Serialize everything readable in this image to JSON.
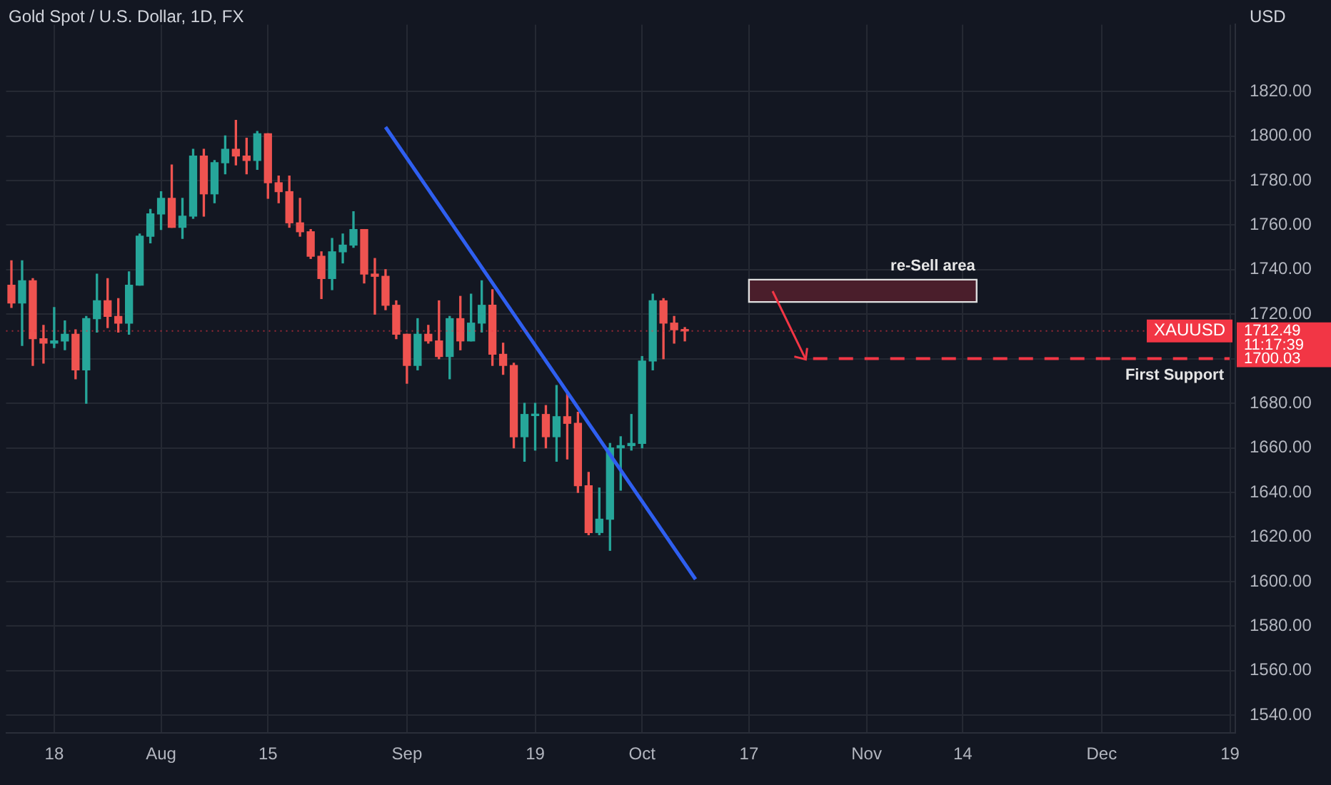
{
  "chart_data": {
    "type": "candlestick",
    "title": "Gold Spot / U.S. Dollar, 1D, FX",
    "ylabel": "USD",
    "categories": [
      null,
      null,
      null,
      null,
      "18",
      null,
      null,
      null,
      null,
      null,
      null,
      null,
      null,
      null,
      "Aug",
      null,
      null,
      null,
      null,
      null,
      null,
      null,
      null,
      null,
      "15",
      null,
      null,
      null,
      null,
      null,
      null,
      null,
      null,
      null,
      null,
      null,
      null,
      "Sep",
      null,
      null,
      null,
      null,
      null,
      null,
      null,
      null,
      null,
      null,
      null,
      "19",
      null,
      null,
      null,
      null,
      null,
      null,
      null,
      null,
      null,
      "Oct",
      null,
      null,
      null,
      null,
      null,
      null,
      null,
      null,
      null,
      "17",
      null,
      null,
      null,
      null,
      null,
      null,
      null,
      null,
      null,
      null,
      "Nov",
      null,
      null,
      null,
      null,
      null,
      null,
      null,
      null,
      "14",
      null,
      null,
      null,
      null,
      null,
      null,
      null,
      null,
      null,
      null,
      null,
      null,
      "Dec",
      null,
      null,
      null,
      null,
      null,
      null,
      null,
      null,
      null,
      null,
      null,
      "19"
    ],
    "ohlc": [
      [
        1733,
        1744,
        1723,
        1725
      ],
      [
        1725,
        1744,
        1706,
        1735
      ],
      [
        1735,
        1736,
        1697,
        1709
      ],
      [
        1709,
        1715,
        1698,
        1707
      ],
      [
        1707,
        1723,
        1705,
        1708
      ],
      [
        1708,
        1717,
        1704,
        1711
      ],
      [
        1711,
        1713,
        1691,
        1695
      ],
      [
        1695,
        1719,
        1680,
        1718
      ],
      [
        1718,
        1738,
        1712,
        1726
      ],
      [
        1726,
        1736,
        1714,
        1719
      ],
      [
        1719,
        1727,
        1712,
        1716
      ],
      [
        1716,
        1739,
        1711,
        1733
      ],
      [
        1733,
        1756,
        1733,
        1755
      ],
      [
        1755,
        1767,
        1752,
        1765
      ],
      [
        1765,
        1775,
        1758,
        1772
      ],
      [
        1772,
        1787,
        1759,
        1759
      ],
      [
        1759,
        1772,
        1754,
        1764
      ],
      [
        1764,
        1794,
        1763,
        1791
      ],
      [
        1791,
        1794,
        1764,
        1774
      ],
      [
        1774,
        1789,
        1770,
        1788
      ],
      [
        1788,
        1800,
        1783,
        1794
      ],
      [
        1794,
        1807,
        1787,
        1791
      ],
      [
        1791,
        1799,
        1783,
        1789
      ],
      [
        1789,
        1802,
        1785,
        1801
      ],
      [
        1801,
        1801,
        1772,
        1779
      ],
      [
        1779,
        1782,
        1770,
        1775
      ],
      [
        1775,
        1782,
        1759,
        1761
      ],
      [
        1761,
        1772,
        1755,
        1757
      ],
      [
        1757,
        1758,
        1745,
        1746
      ],
      [
        1746,
        1748,
        1727,
        1736
      ],
      [
        1736,
        1754,
        1731,
        1748
      ],
      [
        1748,
        1756,
        1743,
        1751
      ],
      [
        1751,
        1766,
        1750,
        1758
      ],
      [
        1758,
        1758,
        1734,
        1738
      ],
      [
        1738,
        1745,
        1720,
        1737
      ],
      [
        1737,
        1740,
        1722,
        1724
      ],
      [
        1724,
        1726,
        1709,
        1711
      ],
      [
        1711,
        1711,
        1689,
        1697
      ],
      [
        1697,
        1718,
        1695,
        1711
      ],
      [
        1711,
        1715,
        1707,
        1708
      ],
      [
        1708,
        1726,
        1700,
        1701
      ],
      [
        1701,
        1719,
        1691,
        1718
      ],
      [
        1718,
        1728,
        1704,
        1708
      ],
      [
        1708,
        1729,
        1708,
        1716
      ],
      [
        1716,
        1735,
        1712,
        1724
      ],
      [
        1724,
        1731,
        1697,
        1702
      ],
      [
        1702,
        1707,
        1693,
        1697
      ],
      [
        1697,
        1698,
        1660,
        1665
      ],
      [
        1665,
        1680,
        1654,
        1675
      ],
      [
        1674.5,
        1680,
        1659,
        1675
      ],
      [
        1675,
        1679,
        1660,
        1665
      ],
      [
        1665,
        1688,
        1654,
        1674
      ],
      [
        1674,
        1685,
        1655,
        1671
      ],
      [
        1671,
        1676,
        1640,
        1643
      ],
      [
        1643,
        1649,
        1621,
        1622
      ],
      [
        1622,
        1642,
        1621,
        1628
      ],
      [
        1628,
        1662,
        1614,
        1660
      ],
      [
        1660,
        1665,
        1641,
        1661
      ],
      [
        1661,
        1675,
        1659,
        1662
      ],
      [
        1662,
        1701,
        1660,
        1699
      ],
      [
        1699,
        1729,
        1695,
        1726
      ],
      [
        1726,
        1727,
        1700,
        1716
      ],
      [
        1716,
        1719,
        1707,
        1713
      ],
      [
        1713,
        1714,
        1708,
        1712.49
      ],
      null,
      null,
      null,
      null,
      null,
      null,
      null,
      null,
      null,
      null,
      null,
      null,
      null,
      null,
      null,
      null,
      null,
      null,
      null,
      null,
      null,
      null,
      null,
      null,
      null,
      null,
      null,
      null,
      null,
      null,
      null,
      null,
      null,
      null,
      null,
      null,
      null,
      null,
      null,
      null,
      null,
      null,
      null,
      null,
      null,
      null,
      null,
      null,
      null,
      null,
      null
    ],
    "series": [
      {
        "type": "line",
        "color": "#2f5ff0",
        "values": [
          null,
          null,
          null,
          null,
          null,
          null,
          null,
          null,
          null,
          null,
          null,
          null,
          null,
          null,
          null,
          null,
          null,
          null,
          null,
          null,
          null,
          null,
          null,
          null,
          null,
          null,
          null,
          null,
          null,
          null,
          null,
          null,
          null,
          null,
          null,
          1804,
          null,
          null,
          null,
          null,
          null,
          null,
          null,
          null,
          null,
          null,
          null,
          null,
          null,
          null,
          null,
          null,
          null,
          null,
          null,
          null,
          null,
          null,
          null,
          null,
          null,
          null,
          null,
          null,
          1601,
          null,
          null,
          null,
          null,
          null,
          null,
          null,
          null,
          null,
          null,
          null,
          null,
          null,
          null,
          null,
          null,
          null,
          null,
          null,
          null,
          null,
          null,
          null,
          null,
          null,
          null,
          null,
          null,
          null,
          null,
          null,
          null,
          null,
          null,
          null,
          null,
          null,
          null,
          null,
          null,
          null,
          null,
          null,
          null,
          null,
          null,
          null,
          null,
          null,
          null
        ]
      }
    ],
    "ylim": [
      1532,
      1850
    ],
    "yticks": [
      {
        "value": 1540,
        "label": "1540.00"
      },
      {
        "value": 1560,
        "label": "1560.00"
      },
      {
        "value": 1580,
        "label": "1580.00"
      },
      {
        "value": 1600,
        "label": "1600.00"
      },
      {
        "value": 1620,
        "label": "1620.00"
      },
      {
        "value": 1640,
        "label": "1640.00"
      },
      {
        "value": 1660,
        "label": "1660.00"
      },
      {
        "value": 1680,
        "label": "1680.00"
      },
      {
        "value": 1700,
        "label": null
      },
      {
        "value": 1720,
        "label": "1720.00"
      },
      {
        "value": 1740,
        "label": "1740.00"
      },
      {
        "value": 1760,
        "label": "1760.00"
      },
      {
        "value": 1780,
        "label": "1780.00"
      },
      {
        "value": 1800,
        "label": "1800.00"
      },
      {
        "value": 1820,
        "label": "1820.00"
      }
    ],
    "ref_lines": [
      {
        "axis": "y",
        "value": 1712.49,
        "label": "XAUUSD",
        "color": "#f23645",
        "line_style": "dotted"
      },
      {
        "axis": "y",
        "value": 1700.03,
        "label": "First Support",
        "color": "#f23645",
        "line_style": "dashed"
      }
    ],
    "bands": [
      {
        "axis": "y",
        "from": 1725.5,
        "to": 1735.5,
        "label": "re-Sell area",
        "color": "#4a1e2b"
      }
    ],
    "annotations": [
      "1712.49",
      "11:17:39",
      "1700.03"
    ],
    "grid": true,
    "legend": false,
    "marker": "none"
  }
}
